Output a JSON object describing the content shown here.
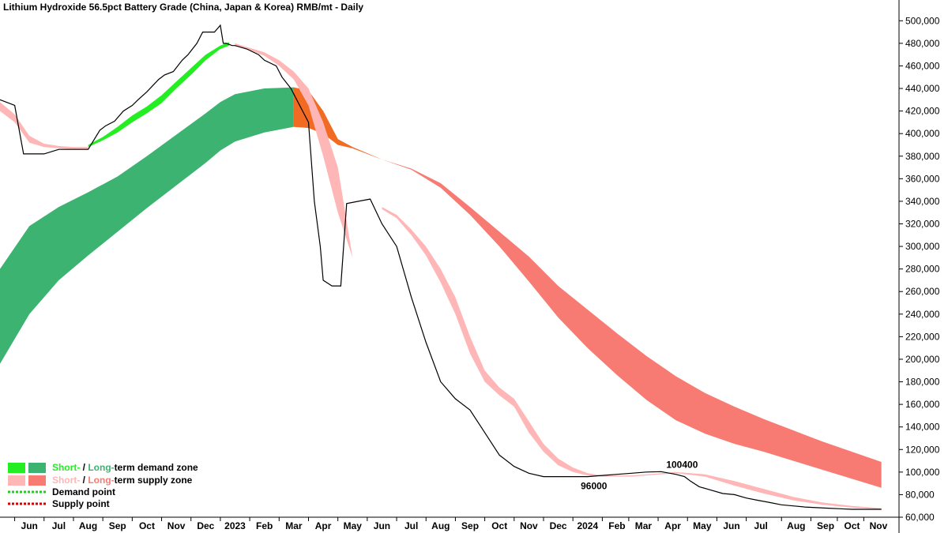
{
  "chart_data": {
    "type": "line",
    "title": "Lithium Hydroxide 56.5pct Battery Grade (China, Japan & Korea) RMB/mt - Daily",
    "ylim": [
      60000,
      510000
    ],
    "y_ticks": [
      500000,
      480000,
      460000,
      440000,
      420000,
      400000,
      380000,
      360000,
      340000,
      320000,
      300000,
      280000,
      260000,
      240000,
      220000,
      200000,
      180000,
      160000,
      140000,
      120000,
      100000,
      80000,
      60000
    ],
    "y_tick_labels": [
      "500,000",
      "480,000",
      "460,000",
      "440,000",
      "420,000",
      "400,000",
      "380,000",
      "360,000",
      "340,000",
      "320,000",
      "300,000",
      "280,000",
      "260,000",
      "240,000",
      "220,000",
      "200,000",
      "180,000",
      "160,000",
      "140,000",
      "120,000",
      "100,000",
      "80,000",
      "60,000"
    ],
    "x_labels": [
      "Jun",
      "Jul",
      "Aug",
      "Sep",
      "Oct",
      "Nov",
      "Dec",
      "2023",
      "Feb",
      "Mar",
      "Apr",
      "May",
      "Jun",
      "Jul",
      "Aug",
      "Sep",
      "Oct",
      "Nov",
      "Dec",
      "2024",
      "Feb",
      "Mar",
      "Apr",
      "May",
      "Jun",
      "Jul",
      "Aug",
      "Sep",
      "Oct",
      "Nov"
    ],
    "x_label_pos": [
      1.0,
      2.0,
      3.0,
      4.0,
      5.0,
      6.0,
      7.0,
      8.0,
      9.0,
      10.0,
      11.0,
      12.0,
      13.0,
      14.0,
      15.0,
      16.0,
      17.0,
      18.0,
      19.0,
      20.0,
      21.0,
      21.9,
      22.9,
      23.9,
      24.9,
      25.9,
      27.1,
      28.1,
      29.0,
      29.9
    ],
    "grid": false,
    "colors": {
      "short_demand": "#22ee22",
      "long_demand": "#3cb371",
      "short_supply": "#ffb6b6",
      "long_supply": "#f77b72",
      "transition_supply": "#f26b22",
      "price_line": "#000000",
      "demand_point": "#22cc22",
      "supply_point": "#dd0000"
    },
    "price": {
      "name": "Price",
      "x": [
        0.0,
        0.5,
        0.8,
        1.5,
        2.0,
        3.0,
        3.4,
        3.6,
        3.9,
        4.2,
        4.5,
        4.7,
        5.0,
        5.4,
        5.6,
        5.9,
        6.2,
        6.4,
        6.7,
        6.9,
        7.3,
        7.5,
        7.6,
        7.7,
        7.9,
        8.0,
        8.4,
        8.8,
        9.0,
        9.4,
        9.6,
        9.9,
        10.1,
        10.5,
        10.7,
        10.9,
        11.0,
        11.3,
        11.6,
        11.8,
        12.2,
        12.6,
        13.0,
        13.5,
        14.0,
        14.5,
        15.0,
        15.5,
        16.0,
        16.5,
        17.0,
        17.5,
        18.0,
        18.5,
        19.0,
        19.5,
        20.0,
        20.5,
        21.0,
        21.5,
        22.0,
        22.5,
        23.0,
        23.3,
        23.5,
        23.8,
        24.2,
        24.6,
        25.0,
        25.4,
        25.8,
        26.2,
        26.6,
        27.0,
        27.4,
        27.8,
        28.2,
        28.6,
        29.0,
        29.5,
        30.0
      ],
      "y": [
        430000,
        425000,
        382000,
        382000,
        386000,
        386000,
        403000,
        407000,
        411000,
        420000,
        425000,
        430000,
        437000,
        448000,
        452000,
        455000,
        465000,
        470000,
        480000,
        490000,
        490000,
        496000,
        480000,
        480000,
        478000,
        478000,
        475000,
        470000,
        465000,
        460000,
        450000,
        440000,
        430000,
        410000,
        340000,
        300000,
        270000,
        265000,
        265000,
        338000,
        340000,
        342000,
        320000,
        300000,
        255000,
        215000,
        180000,
        165000,
        155000,
        135000,
        115000,
        105000,
        99000,
        96000,
        96000,
        96000,
        96000,
        97000,
        98000,
        99000,
        100000,
        100400,
        98000,
        96000,
        92000,
        87000,
        84000,
        81000,
        80000,
        77000,
        75000,
        73000,
        71000,
        70000,
        69000,
        68500,
        68000,
        67500,
        67000,
        67000,
        67000
      ]
    },
    "long_demand_zone": {
      "name": "Long-term demand zone",
      "x": [
        0.0,
        1.0,
        2.0,
        3.0,
        4.0,
        5.0,
        6.0,
        7.0,
        7.5,
        8.0,
        9.0,
        10.0
      ],
      "upper": [
        280000,
        318000,
        335000,
        348000,
        362000,
        380000,
        399000,
        418000,
        428000,
        435000,
        440000,
        441000
      ],
      "lower": [
        196000,
        240000,
        270000,
        292000,
        313000,
        334000,
        354000,
        374000,
        385000,
        393000,
        401000,
        406000
      ]
    },
    "long_supply_zone": {
      "name": "Long-term supply zone",
      "x": [
        10.0,
        10.5,
        11.0,
        11.5,
        12.0,
        13.0,
        14.0,
        15.0,
        16.0,
        17.0,
        18.0,
        19.0,
        20.0,
        21.0,
        22.0,
        23.0,
        24.0,
        25.0,
        26.0,
        27.0,
        28.0,
        29.0,
        30.0
      ],
      "upper": [
        441000,
        438000,
        420000,
        395000,
        388000,
        377000,
        369000,
        356000,
        335000,
        313000,
        291000,
        265000,
        244000,
        223000,
        203000,
        185000,
        170000,
        158000,
        147000,
        137000,
        127000,
        118000,
        109000
      ],
      "lower": [
        406000,
        405000,
        400000,
        390000,
        387000,
        377000,
        368000,
        352000,
        328000,
        300000,
        269000,
        237000,
        210000,
        186000,
        164000,
        146000,
        134000,
        125000,
        118000,
        110000,
        102000,
        94000,
        86000
      ]
    },
    "short_demand_zone": {
      "name": "Short-term demand zone",
      "x": [
        3.0,
        3.5,
        4.0,
        4.5,
        5.0,
        5.5,
        6.0,
        6.5,
        7.0,
        7.5,
        7.8
      ],
      "upper": [
        390000,
        397000,
        406000,
        416000,
        424000,
        434000,
        446000,
        458000,
        470000,
        478000,
        481000
      ],
      "lower": [
        388000,
        394000,
        401000,
        410000,
        418000,
        427000,
        440000,
        452000,
        465000,
        475000,
        478000
      ]
    },
    "short_supply_zone": {
      "name": "Short-term supply zone",
      "x": [
        0.0,
        0.5,
        1.0,
        1.5,
        2.0,
        2.5,
        3.0
      ],
      "upper": [
        428000,
        417000,
        398000,
        391000,
        389000,
        388000,
        388000
      ],
      "lower": [
        420000,
        410000,
        392000,
        388000,
        387000,
        386000,
        386000
      ]
    },
    "short_supply_zone_2": {
      "x": [
        8.0,
        8.5,
        9.0,
        9.5,
        10.0,
        10.5,
        11.0,
        11.5,
        12.0
      ],
      "upper": [
        480000,
        476000,
        472000,
        465000,
        455000,
        440000,
        410000,
        370000,
        290000
      ],
      "lower": [
        478000,
        474000,
        469000,
        460000,
        448000,
        425000,
        380000,
        330000,
        290000
      ]
    },
    "short_supply_zone_3": {
      "x": [
        13.0,
        13.5,
        14.0,
        14.5,
        15.0,
        15.5,
        16.0,
        16.5,
        17.0,
        17.5,
        18.0,
        18.5,
        19.0,
        19.5,
        20.0,
        20.5,
        21.0,
        21.5,
        22.0,
        23.0,
        24.0,
        25.0,
        26.0,
        27.0,
        28.0,
        29.0,
        30.0
      ],
      "upper": [
        335000,
        328000,
        315000,
        300000,
        280000,
        255000,
        220000,
        190000,
        175000,
        165000,
        145000,
        125000,
        112000,
        104000,
        99000,
        97000,
        97000,
        97000,
        98000,
        100000,
        98000,
        92000,
        85000,
        78000,
        73000,
        70000,
        68000
      ],
      "lower": [
        333000,
        325000,
        310000,
        292000,
        268000,
        240000,
        205000,
        180000,
        168000,
        158000,
        135000,
        118000,
        106000,
        100000,
        97000,
        96000,
        96000,
        96000,
        97000,
        99000,
        96000,
        88000,
        81000,
        75000,
        71000,
        68500,
        67000
      ]
    },
    "annotations": [
      {
        "text": "96000",
        "x": 20.0,
        "y": 96000
      },
      {
        "text": "100400",
        "x": 23.0,
        "y": 100400
      }
    ],
    "legend": {
      "demand_zone": {
        "short": "Short-",
        "sep": " / ",
        "long": "Long-",
        "rest": "term demand zone"
      },
      "supply_zone": {
        "short": "Short-",
        "sep": " / ",
        "long": "Long-",
        "rest": "term supply zone"
      },
      "demand_point": "Demand point",
      "supply_point": "Supply point"
    }
  }
}
